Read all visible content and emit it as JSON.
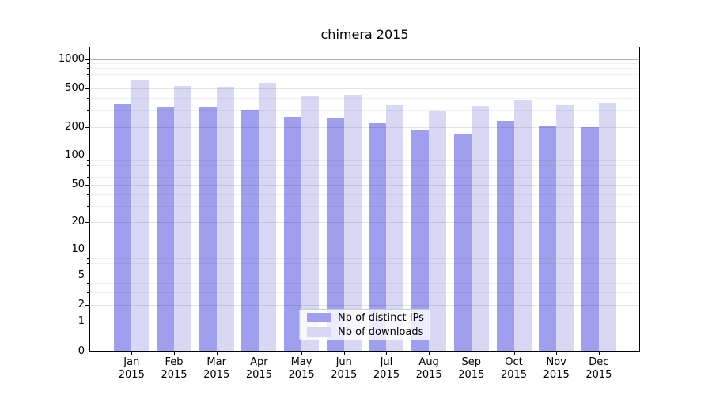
{
  "chart_data": {
    "type": "bar",
    "title": "chimera 2015",
    "categories": [
      "Jan",
      "Feb",
      "Mar",
      "Apr",
      "May",
      "Jun",
      "Jul",
      "Aug",
      "Sep",
      "Oct",
      "Nov",
      "Dec"
    ],
    "category_year": "2015",
    "series": [
      {
        "name": "Nb of distinct IPs",
        "color": "#9f9fee",
        "values": [
          343,
          314,
          318,
          300,
          255,
          246,
          217,
          186,
          170,
          229,
          206,
          197
        ]
      },
      {
        "name": "Nb of downloads",
        "color": "#d8d8f5",
        "values": [
          615,
          525,
          520,
          566,
          408,
          431,
          336,
          291,
          329,
          373,
          338,
          355
        ]
      }
    ],
    "xlabel": "",
    "ylabel": "",
    "yscale": "log1p",
    "ylim": [
      0,
      1338
    ],
    "yticks": [
      0,
      1,
      2,
      5,
      10,
      20,
      50,
      100,
      200,
      500,
      1000
    ],
    "grid": {
      "on": true,
      "major": [
        1,
        10,
        100,
        1000
      ],
      "mid": [
        2,
        5,
        20,
        50,
        200,
        500
      ],
      "minor": [
        3,
        4,
        6,
        7,
        8,
        9,
        30,
        40,
        60,
        70,
        80,
        90,
        300,
        400,
        600,
        700,
        800,
        900
      ]
    },
    "legend_position": "lower center"
  },
  "colors": {
    "background": "#ffffff",
    "bar_distinct_ips": "#9f9fee",
    "bar_downloads": "#d8d8f5",
    "grid_major": "#b0b0b0",
    "grid_minor": "#e8e8e8",
    "axis": "#000000",
    "legend_border": "#cccccc"
  }
}
